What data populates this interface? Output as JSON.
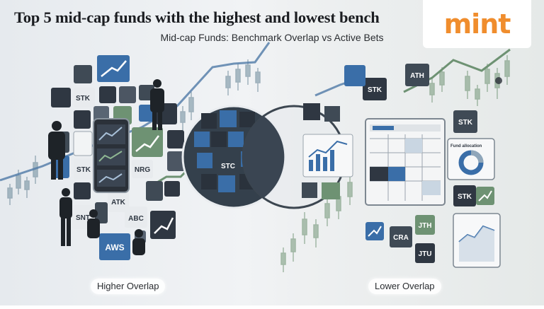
{
  "header": {
    "title": "Top 5 mid-cap funds with the highest and lowest bench",
    "subtitle": "Mid-cap Funds: Benchmark Overlap vs Active Bets"
  },
  "logo": {
    "text": "mint",
    "color": "#f08d2d"
  },
  "illustration": {
    "left_tiles": [
      "STK",
      "STK",
      "NRG",
      "SNT",
      "ATK",
      "ABC",
      "AWS"
    ],
    "center_tile": "STC",
    "right_tiles": [
      "ATH",
      "STK",
      "STK",
      "STK",
      "CRA",
      "JTH",
      "JTU"
    ],
    "card_label": "Fund allocation"
  },
  "labels": {
    "left": "Higher Overlap",
    "right": "Lower Overlap"
  },
  "colors": {
    "dark_tile": "#2f3742",
    "blue_tile": "#3a6ea8",
    "green_tile": "#6e9273",
    "accent": "#f08d2d"
  }
}
